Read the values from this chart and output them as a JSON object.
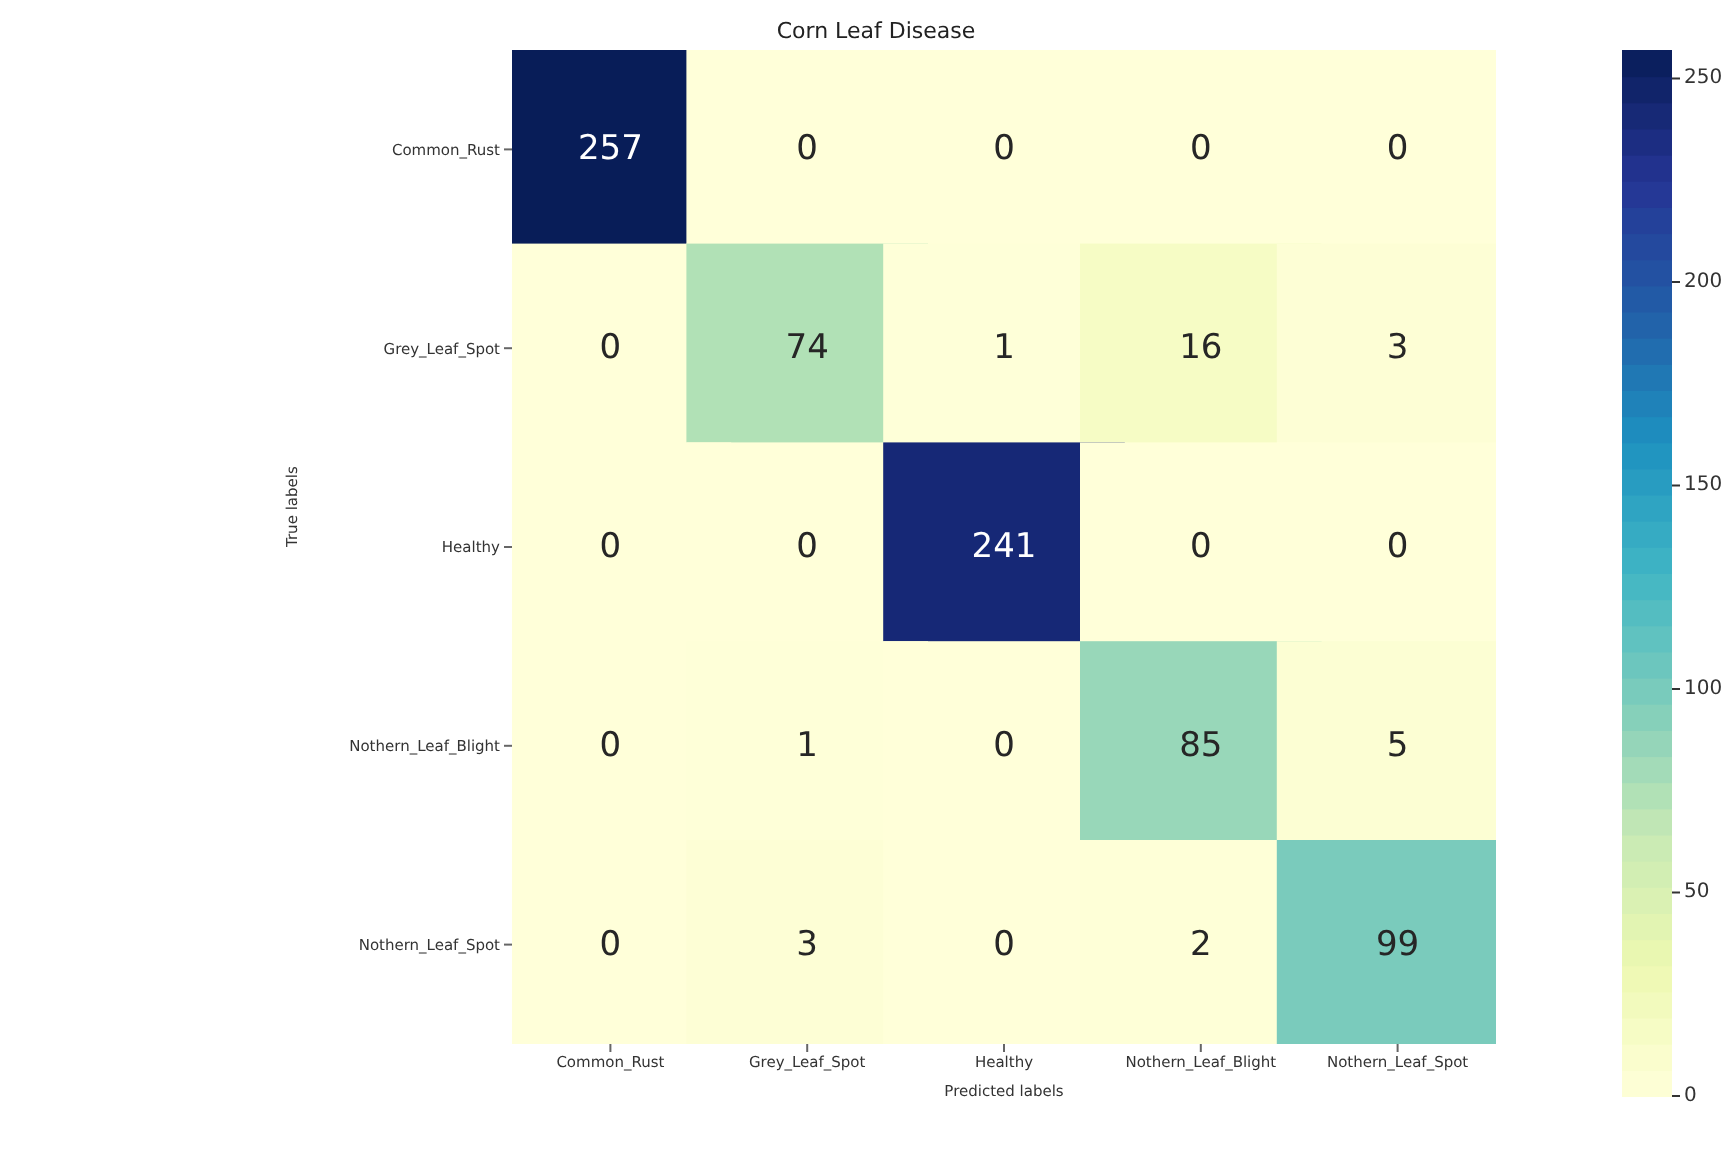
{
  "chart_data": {
    "type": "heatmap",
    "title": "Corn Leaf Disease",
    "xlabel": "Predicted labels",
    "ylabel": "True labels",
    "categories": [
      "Common_Rust",
      "Grey_Leaf_Spot",
      "Healthy",
      "Nothern_Leaf_Blight",
      "Nothern_Leaf_Spot"
    ],
    "y_categories": [
      "Common_Rust",
      "Grey_Leaf_Spot",
      "Healthy",
      "Nothern_Leaf_Blight",
      "Nothern_Leaf_Spot"
    ],
    "cells": [
      [
        257,
        0,
        0,
        0,
        0
      ],
      [
        0,
        74,
        1,
        16,
        3
      ],
      [
        0,
        0,
        241,
        0,
        0
      ],
      [
        0,
        1,
        0,
        85,
        5
      ],
      [
        0,
        3,
        0,
        2,
        99
      ]
    ],
    "clim": [
      0,
      257
    ],
    "cticks": [
      0,
      50,
      100,
      150,
      200,
      250
    ],
    "data_labels": true
  }
}
